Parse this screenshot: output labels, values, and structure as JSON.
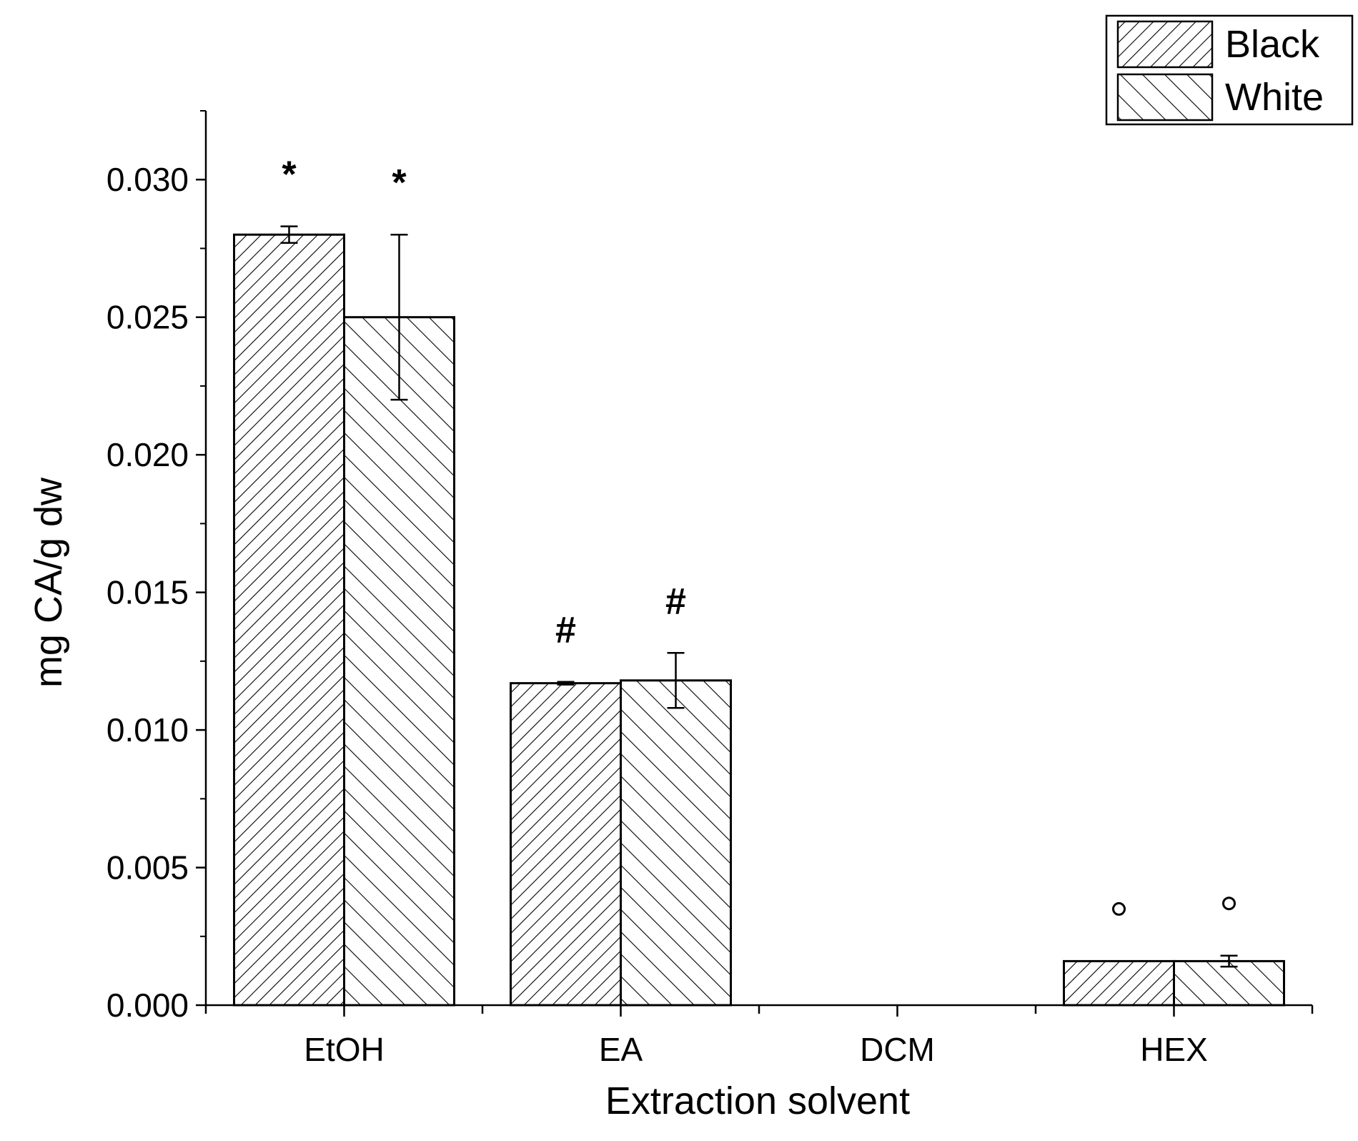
{
  "chart_data": {
    "type": "bar",
    "categories": [
      "EtOH",
      "EA",
      "DCM",
      "HEX"
    ],
    "series": [
      {
        "name": "Black",
        "pattern": "forward-hatch",
        "values": [
          0.028,
          0.0117,
          0.0,
          0.0016
        ],
        "errors": [
          0.0003,
          5e-05,
          0.0,
          0.0
        ],
        "annotations": [
          "*",
          "#",
          "",
          "o"
        ]
      },
      {
        "name": "White",
        "pattern": "back-hatch",
        "values": [
          0.025,
          0.0118,
          0.0,
          0.0016
        ],
        "errors": [
          0.003,
          0.001,
          0.0,
          0.0002
        ],
        "annotations": [
          "*",
          "#",
          "",
          "o"
        ]
      }
    ],
    "xlabel": "Extraction solvent",
    "ylabel": "mg CA/g dw",
    "ylim": [
      0,
      0.0325
    ],
    "yticks": [
      0.0,
      0.005,
      0.01,
      0.015,
      0.02,
      0.025,
      0.03
    ],
    "ytick_labels": [
      "0.000",
      "0.005",
      "0.010",
      "0.015",
      "0.020",
      "0.025",
      "0.030"
    ],
    "grid": false,
    "legend_position": "top-right",
    "colors": {
      "bar_fill": "#ffffff",
      "stroke": "#000000"
    }
  }
}
